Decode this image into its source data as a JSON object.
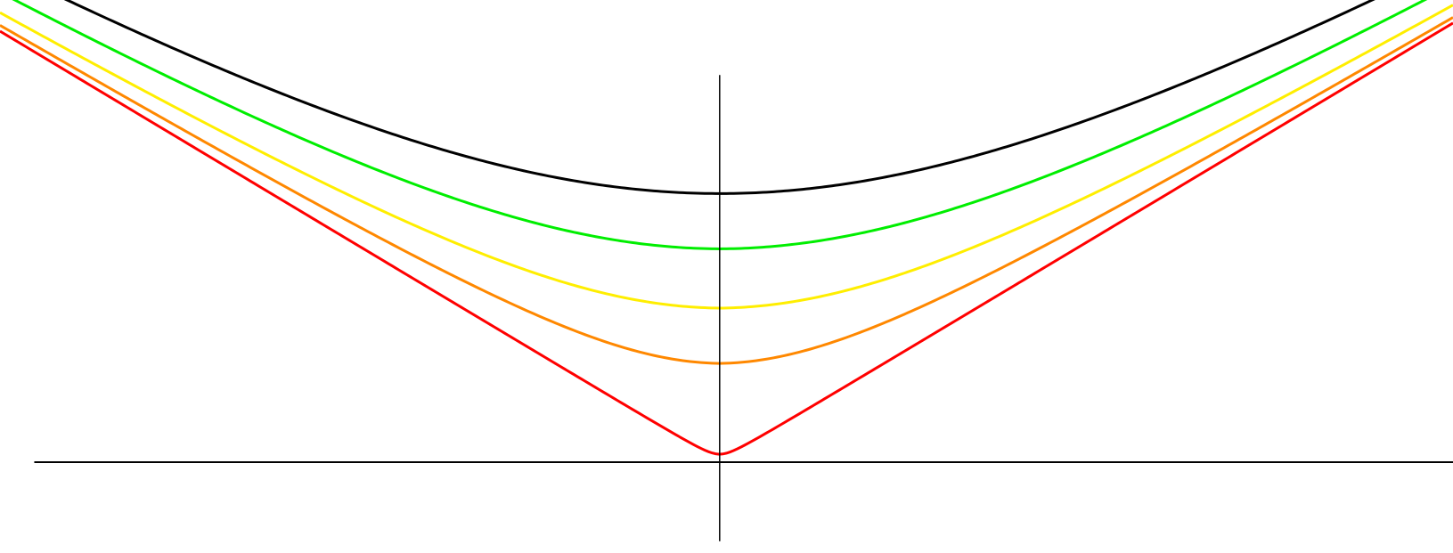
{
  "chart_data": {
    "type": "line",
    "title": "",
    "xlabel": "",
    "ylabel": "",
    "xlim": [
      -10.5,
      10.7
    ],
    "ylim": [
      -1.15,
      5.85
    ],
    "grid": false,
    "legend": "none",
    "axes": {
      "x_axis_range": [
        -10,
        10.7
      ],
      "y_axis_range": [
        -1.0,
        4.9
      ],
      "color": "#000000"
    },
    "series": [
      {
        "color": "#000000",
        "a": 3.4,
        "x": [
          -10.5,
          -8,
          -5,
          -3,
          -1,
          0,
          1,
          3,
          5,
          8,
          10.5
        ],
        "y": [
          6.1,
          5.3,
          4.46,
          3.98,
          3.51,
          3.4,
          3.51,
          3.98,
          4.46,
          5.3,
          6.1
        ]
      },
      {
        "color": "#00ee00",
        "a": 2.7,
        "x": [
          -10.5,
          -8,
          -5,
          -3,
          -1,
          0,
          1,
          3,
          5,
          8,
          10.5
        ],
        "y": [
          6.03,
          5.22,
          4.29,
          3.72,
          2.93,
          2.7,
          2.93,
          3.72,
          4.29,
          5.22,
          6.03
        ]
      },
      {
        "color": "#ffee00",
        "a": 1.95,
        "x": [
          -10.5,
          -8,
          -5,
          -3,
          -1,
          0,
          1,
          3,
          5,
          8,
          10.5
        ],
        "y": [
          5.97,
          5.12,
          4.1,
          3.4,
          2.3,
          1.95,
          2.3,
          3.4,
          4.1,
          5.12,
          5.97
        ]
      },
      {
        "color": "#ff8800",
        "a": 1.25,
        "x": [
          -10.5,
          -8,
          -5,
          -3,
          -1,
          0,
          1,
          3,
          5,
          8,
          10.5
        ],
        "y": [
          5.92,
          5.05,
          3.94,
          3.12,
          1.72,
          1.25,
          1.72,
          3.12,
          3.94,
          5.05,
          5.92
        ]
      },
      {
        "color": "#ff0000",
        "a": 0.1,
        "x": [
          -10.5,
          -8,
          -5,
          -3,
          -1,
          0,
          1,
          3,
          5,
          8,
          10.5
        ],
        "y": [
          5.88,
          5.0,
          3.8,
          2.95,
          1.15,
          0.1,
          1.15,
          2.95,
          3.8,
          5.0,
          5.88
        ]
      }
    ]
  }
}
